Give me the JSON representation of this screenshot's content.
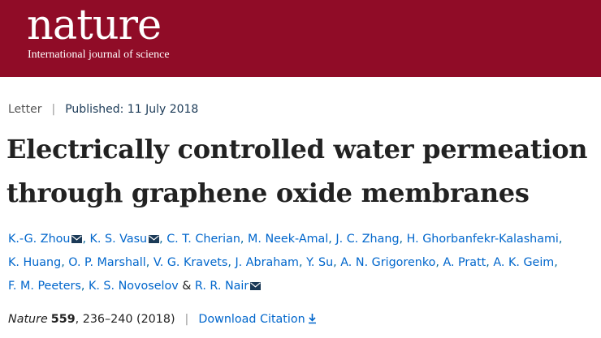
{
  "masthead": {
    "logo": "nature",
    "tagline": "International journal of science",
    "color": "#900c27"
  },
  "article": {
    "type": "Letter",
    "published": "Published: 11 July 2018",
    "title": "Electrically controlled water permeation through graphene oxide membranes",
    "authors": [
      {
        "name": "K.-G. Zhou",
        "mail": true
      },
      {
        "name": "K. S. Vasu",
        "mail": true
      },
      {
        "name": "C. T. Cherian",
        "mail": false
      },
      {
        "name": "M. Neek-Amal",
        "mail": false
      },
      {
        "name": "J. C. Zhang",
        "mail": false
      },
      {
        "name": "H. Ghorbanfekr-Kalashami",
        "mail": false
      },
      {
        "name": "K. Huang",
        "mail": false
      },
      {
        "name": "O. P. Marshall",
        "mail": false
      },
      {
        "name": "V. G. Kravets",
        "mail": false
      },
      {
        "name": "J. Abraham",
        "mail": false
      },
      {
        "name": "Y. Su",
        "mail": false
      },
      {
        "name": "A. N. Grigorenko",
        "mail": false
      },
      {
        "name": "A. Pratt",
        "mail": false
      },
      {
        "name": "A. K. Geim",
        "mail": false
      },
      {
        "name": "F. M. Peeters",
        "mail": false
      },
      {
        "name": "K. S. Novoselov",
        "mail": false
      },
      {
        "name": "R. R. Nair",
        "mail": true
      }
    ],
    "citation": {
      "journal": "Nature",
      "volume": "559",
      "pages": ", 236–240 (2018)",
      "download": "Download Citation"
    }
  },
  "icons": {
    "mail": "mail-icon",
    "download": "download-arrow-icon"
  }
}
